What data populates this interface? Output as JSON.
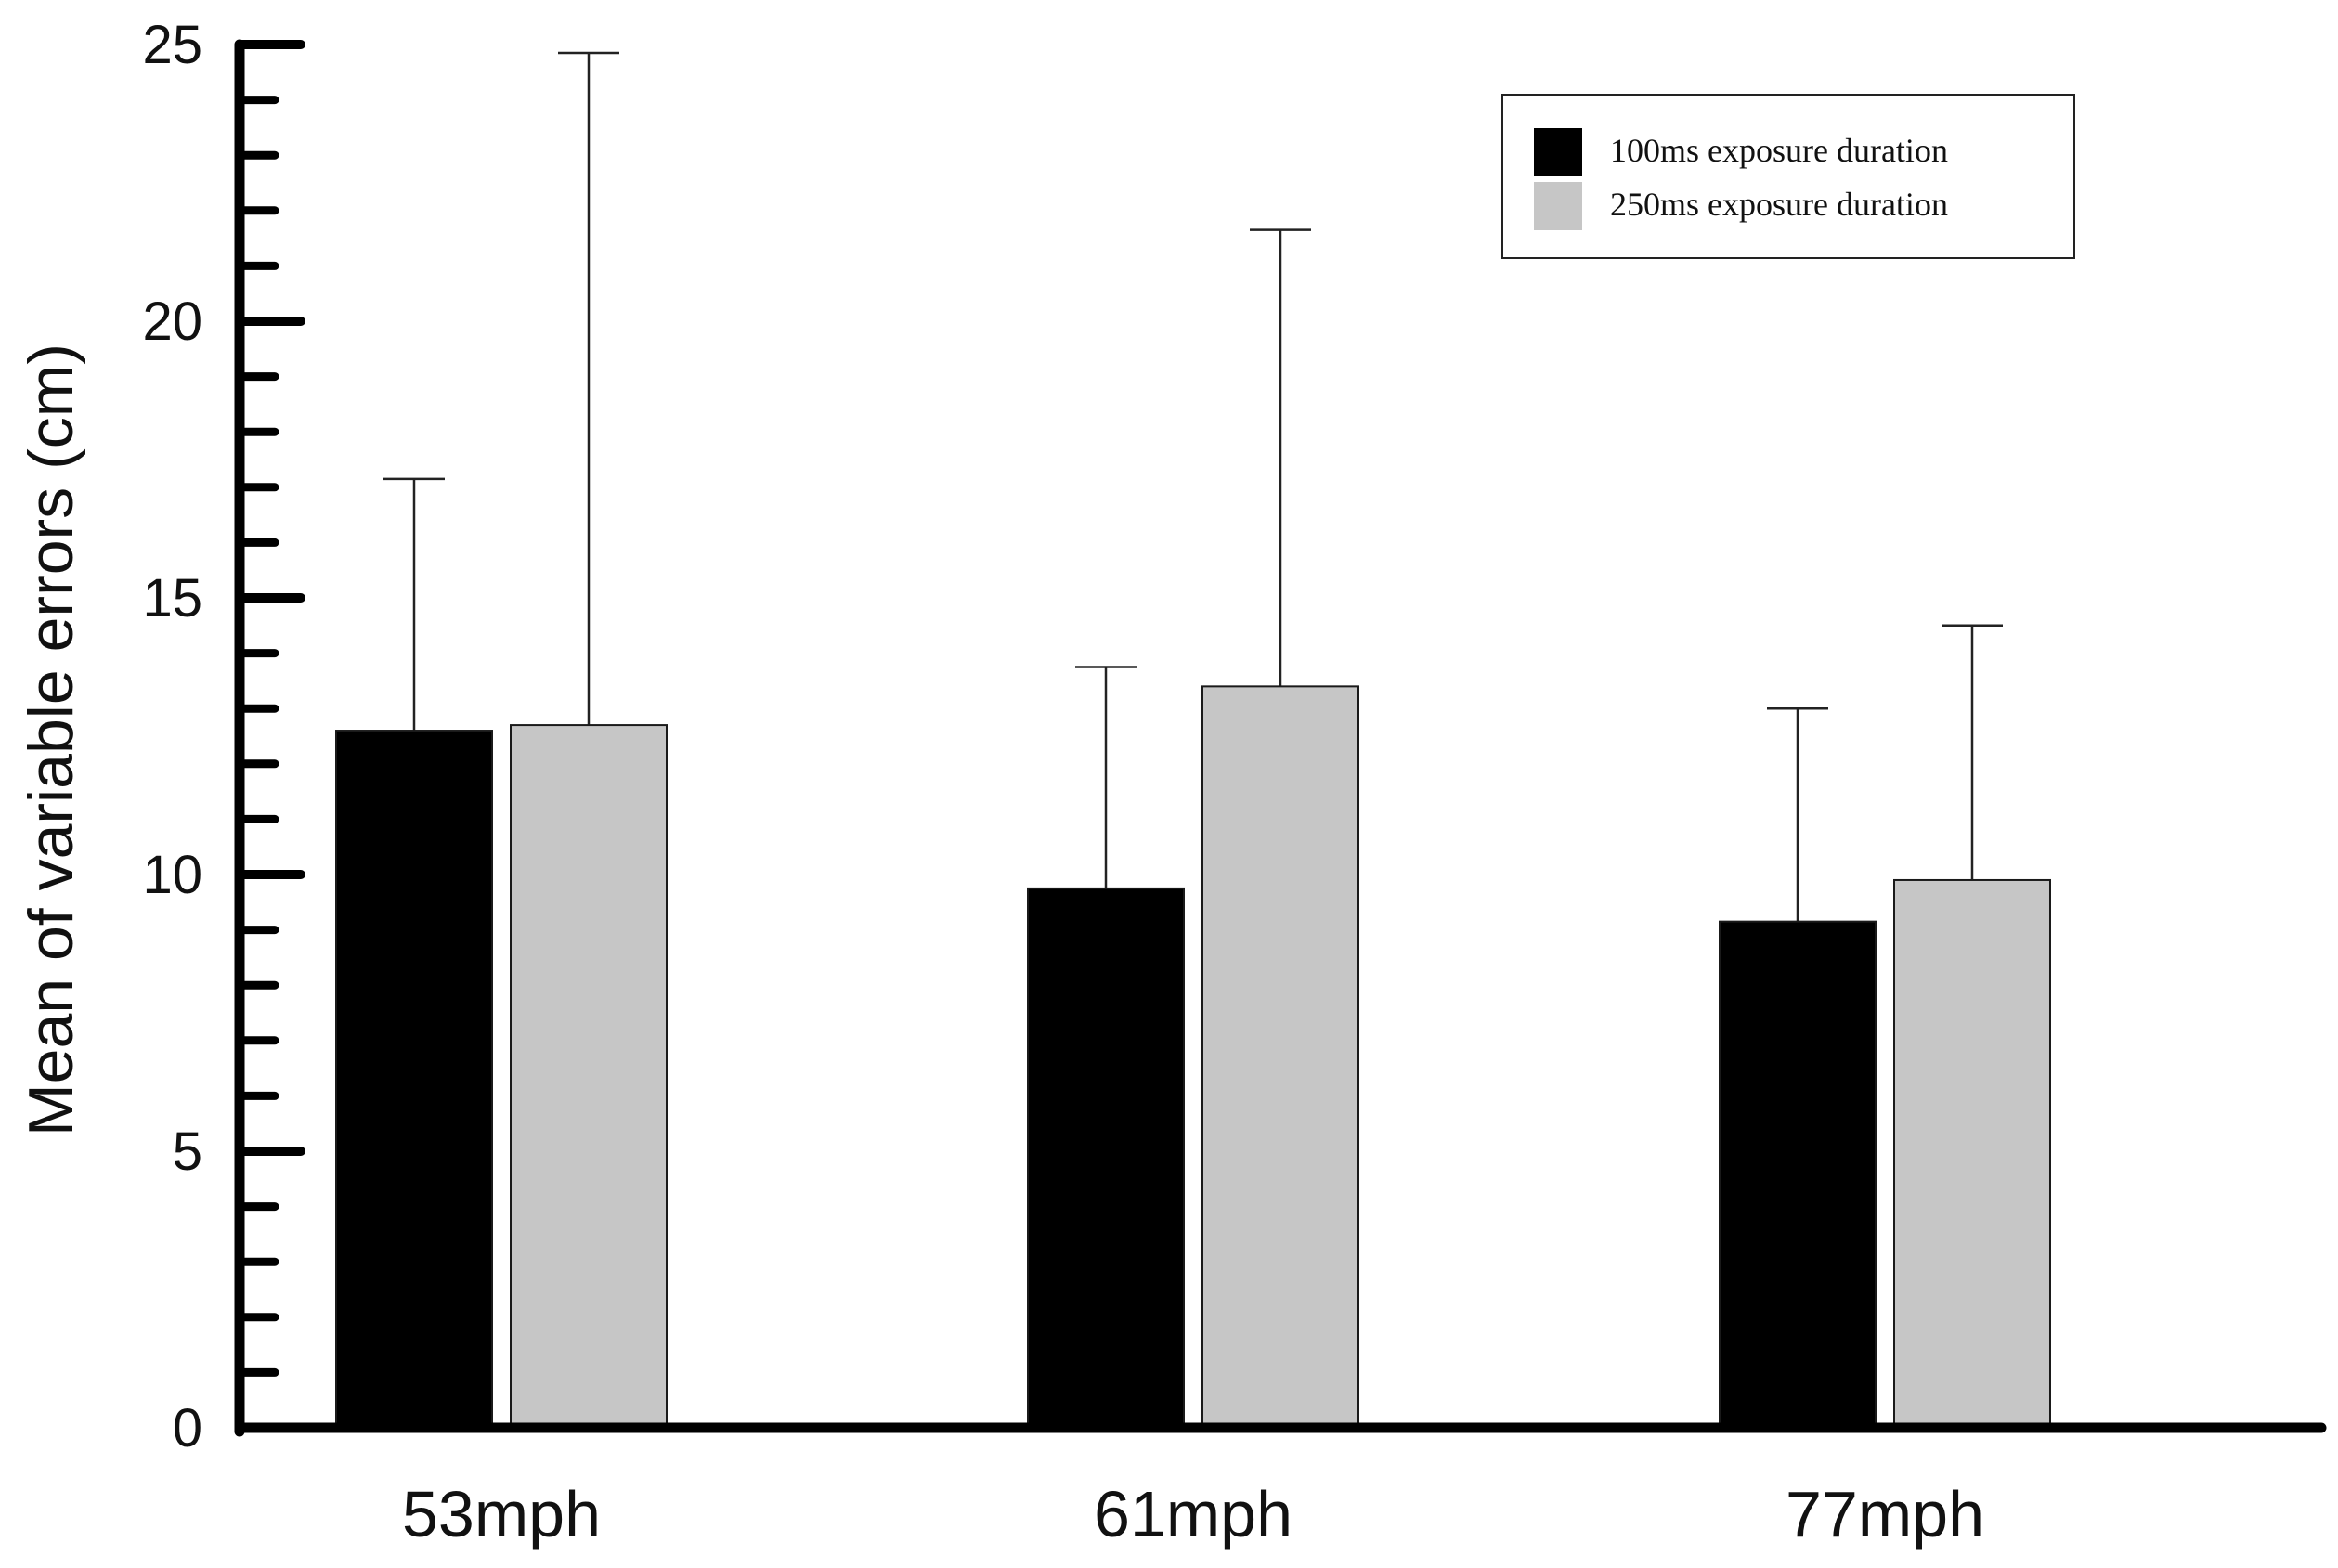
{
  "chart_data": {
    "type": "bar",
    "title": "",
    "xlabel": "",
    "ylabel": "Mean of variable errors (cm)",
    "ylim": [
      0,
      25
    ],
    "major_ticks": [
      0,
      5,
      10,
      15,
      20,
      25
    ],
    "minor_tick_step": 1,
    "grid": false,
    "legend_position": "top-right",
    "categories": [
      "53mph",
      "61mph",
      "77mph"
    ],
    "series": [
      {
        "name": "100ms exposure duration",
        "color": "#000000",
        "values": [
          12.6,
          9.75,
          9.15
        ],
        "error_upper": [
          17.15,
          13.75,
          13.0
        ]
      },
      {
        "name": "250ms exposure duration",
        "color": "#c6c6c6",
        "values": [
          12.7,
          13.4,
          9.9
        ],
        "error_upper": [
          24.85,
          21.65,
          14.5
        ]
      }
    ]
  }
}
